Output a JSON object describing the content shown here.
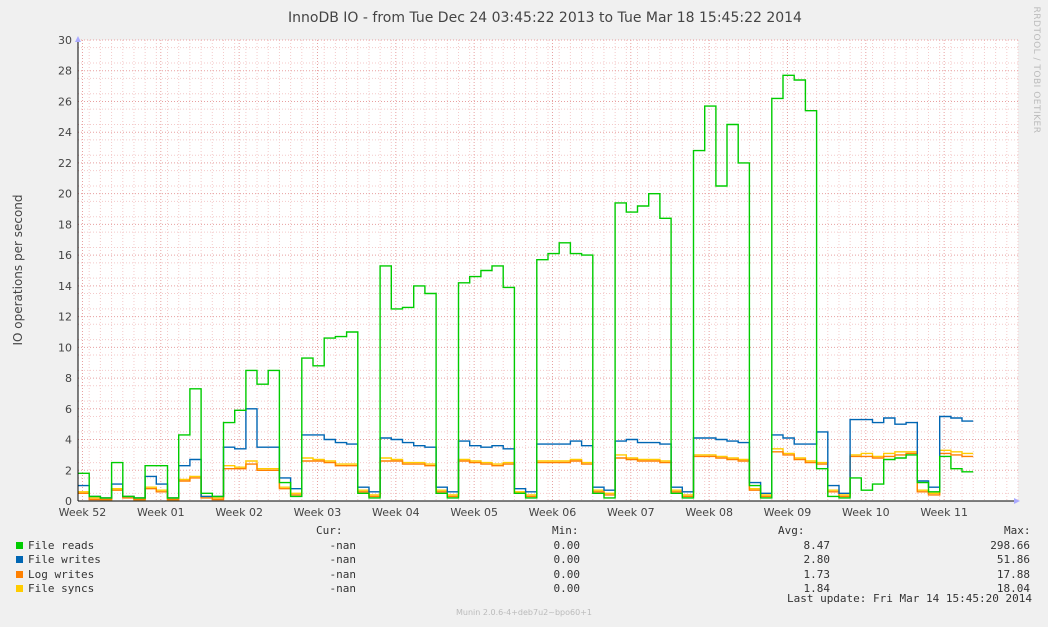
{
  "chart_data": {
    "type": "line",
    "title": "InnoDB IO - from Tue Dec 24 03:45:22 2013 to Tue Mar 18 15:45:22 2014",
    "ylabel": "IO operations per second",
    "watermark": "RRDTOOL / TOBI OETIKER",
    "ylim": [
      0,
      30
    ],
    "yticks": [
      0,
      2,
      4,
      6,
      8,
      10,
      12,
      14,
      16,
      18,
      20,
      22,
      24,
      26,
      28,
      30
    ],
    "xlim": [
      0,
      84
    ],
    "xticks": [
      {
        "x": 0.4,
        "label": "Week 52"
      },
      {
        "x": 7.4,
        "label": "Week 01"
      },
      {
        "x": 14.4,
        "label": "Week 02"
      },
      {
        "x": 21.4,
        "label": "Week 03"
      },
      {
        "x": 28.4,
        "label": "Week 04"
      },
      {
        "x": 35.4,
        "label": "Week 05"
      },
      {
        "x": 42.4,
        "label": "Week 06"
      },
      {
        "x": 49.4,
        "label": "Week 07"
      },
      {
        "x": 56.4,
        "label": "Week 08"
      },
      {
        "x": 63.4,
        "label": "Week 09"
      },
      {
        "x": 70.4,
        "label": "Week 10"
      },
      {
        "x": 77.4,
        "label": "Week 11"
      }
    ],
    "grid": true,
    "series": [
      {
        "name": "File reads",
        "color": "#00cc00",
        "x": [
          0,
          1,
          2,
          3,
          4,
          5,
          6,
          7,
          8,
          9,
          10,
          11,
          12,
          13,
          14,
          15,
          16,
          17,
          18,
          19,
          20,
          21,
          22,
          23,
          24,
          25,
          26,
          27,
          28,
          29,
          30,
          31,
          32,
          33,
          34,
          35,
          36,
          37,
          38,
          39,
          40,
          41,
          42,
          43,
          44,
          45,
          46,
          47,
          48,
          49,
          50,
          51,
          52,
          53,
          54,
          55,
          56,
          57,
          58,
          59,
          60,
          61,
          62,
          63,
          64,
          65,
          66,
          67,
          68,
          69,
          70,
          71,
          72,
          73,
          74,
          75,
          76,
          77,
          78,
          79
        ],
        "values": [
          1.8,
          0.3,
          0.2,
          2.5,
          0.3,
          0.2,
          2.3,
          2.3,
          0.2,
          4.3,
          7.3,
          0.5,
          0.3,
          5.1,
          5.9,
          8.5,
          7.6,
          8.5,
          1.2,
          0.3,
          9.3,
          8.8,
          10.6,
          10.7,
          11.0,
          0.5,
          0.2,
          15.3,
          12.5,
          12.6,
          14.0,
          13.5,
          0.5,
          0.2,
          14.2,
          14.6,
          15.0,
          15.3,
          13.9,
          0.5,
          0.2,
          15.7,
          16.1,
          16.8,
          16.1,
          16.0,
          0.5,
          0.2,
          19.4,
          18.8,
          19.2,
          20.0,
          18.4,
          0.5,
          0.2,
          22.8,
          25.7,
          20.5,
          24.5,
          22.0,
          1.0,
          0.2,
          26.2,
          27.7,
          27.4,
          25.4,
          2.1,
          0.3,
          0.2,
          1.5,
          0.7,
          1.1,
          2.7,
          2.8,
          3.0,
          1.2,
          0.6,
          2.9,
          2.1,
          1.9
        ]
      },
      {
        "name": "File writes",
        "color": "#0066b3",
        "x": [
          0,
          1,
          2,
          3,
          4,
          5,
          6,
          7,
          8,
          9,
          10,
          11,
          12,
          13,
          14,
          15,
          16,
          17,
          18,
          19,
          20,
          21,
          22,
          23,
          24,
          25,
          26,
          27,
          28,
          29,
          30,
          31,
          32,
          33,
          34,
          35,
          36,
          37,
          38,
          39,
          40,
          41,
          42,
          43,
          44,
          45,
          46,
          47,
          48,
          49,
          50,
          51,
          52,
          53,
          54,
          55,
          56,
          57,
          58,
          59,
          60,
          61,
          62,
          63,
          64,
          65,
          66,
          67,
          68,
          69,
          70,
          71,
          72,
          73,
          74,
          75,
          76,
          77,
          78,
          79
        ],
        "values": [
          1.0,
          0.3,
          0.2,
          1.1,
          0.3,
          0.2,
          1.6,
          1.1,
          0.2,
          2.3,
          2.7,
          0.3,
          0.3,
          3.5,
          3.4,
          6.0,
          3.5,
          3.5,
          1.5,
          0.8,
          4.3,
          4.3,
          4.0,
          3.8,
          3.7,
          0.9,
          0.6,
          4.1,
          4.0,
          3.8,
          3.6,
          3.5,
          0.9,
          0.6,
          3.9,
          3.6,
          3.5,
          3.6,
          3.4,
          0.8,
          0.6,
          3.7,
          3.7,
          3.7,
          3.9,
          3.6,
          0.9,
          0.7,
          3.9,
          4.0,
          3.8,
          3.8,
          3.7,
          0.9,
          0.6,
          4.1,
          4.1,
          4.0,
          3.9,
          3.8,
          1.2,
          0.5,
          4.3,
          4.1,
          3.7,
          3.7,
          4.5,
          1.0,
          0.5,
          5.3,
          5.3,
          5.1,
          5.4,
          5.0,
          5.1,
          1.3,
          0.9,
          5.5,
          5.4,
          5.2
        ]
      },
      {
        "name": "Log writes",
        "color": "#ff8000",
        "x": [
          0,
          1,
          2,
          3,
          4,
          5,
          6,
          7,
          8,
          9,
          10,
          11,
          12,
          13,
          14,
          15,
          16,
          17,
          18,
          19,
          20,
          21,
          22,
          23,
          24,
          25,
          26,
          27,
          28,
          29,
          30,
          31,
          32,
          33,
          34,
          35,
          36,
          37,
          38,
          39,
          40,
          41,
          42,
          43,
          44,
          45,
          46,
          47,
          48,
          49,
          50,
          51,
          52,
          53,
          54,
          55,
          56,
          57,
          58,
          59,
          60,
          61,
          62,
          63,
          64,
          65,
          66,
          67,
          68,
          69,
          70,
          71,
          72,
          73,
          74,
          75,
          76,
          77,
          78,
          79
        ],
        "values": [
          0.5,
          0.1,
          0.1,
          0.7,
          0.2,
          0.1,
          0.8,
          0.6,
          0.1,
          1.3,
          1.5,
          0.2,
          0.1,
          2.1,
          2.1,
          2.4,
          2.0,
          2.0,
          0.8,
          0.4,
          2.6,
          2.6,
          2.5,
          2.3,
          2.3,
          0.6,
          0.3,
          2.6,
          2.6,
          2.4,
          2.4,
          2.3,
          0.6,
          0.3,
          2.6,
          2.5,
          2.4,
          2.3,
          2.4,
          0.5,
          0.3,
          2.5,
          2.5,
          2.5,
          2.6,
          2.4,
          0.6,
          0.4,
          2.8,
          2.7,
          2.6,
          2.6,
          2.5,
          0.6,
          0.3,
          2.9,
          2.9,
          2.8,
          2.7,
          2.6,
          0.7,
          0.3,
          3.2,
          3.0,
          2.7,
          2.5,
          2.4,
          0.6,
          0.3,
          2.9,
          2.9,
          2.8,
          2.9,
          3.0,
          3.1,
          0.6,
          0.4,
          3.1,
          3.0,
          2.9
        ]
      },
      {
        "name": "File syncs",
        "color": "#ffcc00",
        "x": [
          0,
          1,
          2,
          3,
          4,
          5,
          6,
          7,
          8,
          9,
          10,
          11,
          12,
          13,
          14,
          15,
          16,
          17,
          18,
          19,
          20,
          21,
          22,
          23,
          24,
          25,
          26,
          27,
          28,
          29,
          30,
          31,
          32,
          33,
          34,
          35,
          36,
          37,
          38,
          39,
          40,
          41,
          42,
          43,
          44,
          45,
          46,
          47,
          48,
          49,
          50,
          51,
          52,
          53,
          54,
          55,
          56,
          57,
          58,
          59,
          60,
          61,
          62,
          63,
          64,
          65,
          66,
          67,
          68,
          69,
          70,
          71,
          72,
          73,
          74,
          75,
          76,
          77,
          78,
          79
        ],
        "values": [
          0.6,
          0.2,
          0.1,
          0.8,
          0.3,
          0.1,
          0.9,
          0.7,
          0.1,
          1.4,
          1.6,
          0.3,
          0.2,
          2.3,
          2.2,
          2.6,
          2.1,
          2.1,
          0.9,
          0.5,
          2.8,
          2.7,
          2.6,
          2.4,
          2.4,
          0.7,
          0.4,
          2.8,
          2.7,
          2.5,
          2.5,
          2.4,
          0.7,
          0.4,
          2.7,
          2.6,
          2.5,
          2.4,
          2.5,
          0.6,
          0.4,
          2.6,
          2.6,
          2.6,
          2.7,
          2.5,
          0.7,
          0.5,
          3.0,
          2.8,
          2.7,
          2.7,
          2.6,
          0.7,
          0.4,
          3.0,
          3.0,
          2.9,
          2.8,
          2.7,
          0.8,
          0.4,
          3.4,
          3.1,
          2.8,
          2.6,
          2.5,
          0.7,
          0.4,
          3.0,
          3.1,
          2.9,
          3.1,
          3.2,
          3.2,
          0.7,
          0.5,
          3.3,
          3.2,
          3.1
        ]
      }
    ]
  },
  "legend": {
    "headers": {
      "cur": "Cur:",
      "min": "Min:",
      "avg": "Avg:",
      "max": "Max:"
    },
    "rows": [
      {
        "name": "File reads",
        "color": "#00cc00",
        "cur": "-nan",
        "min": "0.00",
        "avg": "8.47",
        "max": "298.66"
      },
      {
        "name": "File writes",
        "color": "#0066b3",
        "cur": "-nan",
        "min": "0.00",
        "avg": "2.80",
        "max": "51.86"
      },
      {
        "name": "Log writes",
        "color": "#ff8000",
        "cur": "-nan",
        "min": "0.00",
        "avg": "1.73",
        "max": "17.88"
      },
      {
        "name": "File syncs",
        "color": "#ffcc00",
        "cur": "-nan",
        "min": "0.00",
        "avg": "1.84",
        "max": "18.04"
      }
    ],
    "last_update": "Last update:  Fri Mar 14 15:45:20 2014"
  },
  "footer": "Munin 2.0.6-4+deb7u2~bpo60+1"
}
